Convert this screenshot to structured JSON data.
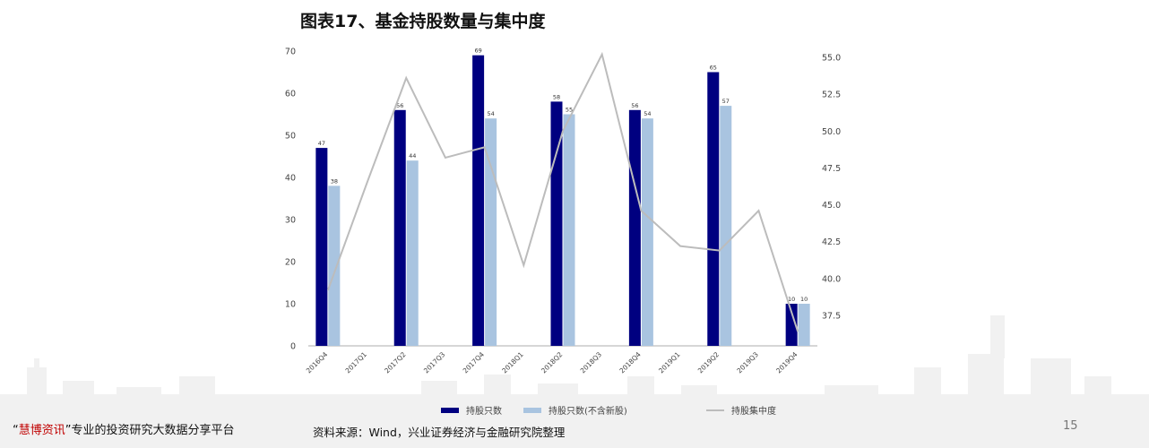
{
  "title": "图表17、基金持股数量与集中度",
  "footer": {
    "quote_open": "“",
    "brand": "慧博资讯",
    "quote_close": "”",
    "slogan": "专业的投资研究大数据分享平台",
    "slogan_tail": "台"
  },
  "source": "资料来源：Wind，兴业证券经济与金融研究院整理",
  "page_number": "15",
  "colors": {
    "dark_bar": "#000080",
    "light_bar": "#a9c4e0",
    "line": "#bcbcbc"
  },
  "chart_data": {
    "type": "bar",
    "categories": [
      "2016Q4",
      "2017Q1",
      "2017Q2",
      "2017Q3",
      "2017Q4",
      "2018Q1",
      "2018Q2",
      "2018Q3",
      "2018Q4",
      "2019Q1",
      "2019Q2",
      "2019Q3",
      "2019Q4"
    ],
    "series": [
      {
        "name": "持股只数",
        "type": "bar",
        "axis": "left",
        "values": [
          47,
          null,
          56,
          null,
          69,
          null,
          58,
          null,
          56,
          null,
          65,
          null,
          10
        ]
      },
      {
        "name": "持股只数(不含新股)",
        "type": "bar",
        "axis": "left",
        "values": [
          38,
          null,
          44,
          null,
          54,
          null,
          55,
          null,
          54,
          null,
          57,
          null,
          10
        ]
      },
      {
        "name": "持股集中度",
        "type": "line",
        "axis": "right",
        "values": [
          39.2,
          46.5,
          53.6,
          48.2,
          48.9,
          40.9,
          50.0,
          55.2,
          44.6,
          42.2,
          41.9,
          44.6,
          36.4
        ]
      }
    ],
    "y_left": {
      "min": 0,
      "max": 70,
      "ticks": [
        "0",
        "10",
        "20",
        "30",
        "40",
        "50",
        "60",
        "70"
      ]
    },
    "y_right": {
      "min": 35.0,
      "max": 55.5,
      "ticks": [
        "37.5",
        "40.0",
        "42.5",
        "45.0",
        "47.5",
        "50.0",
        "52.5",
        "55.0"
      ]
    },
    "legend_position": "bottom",
    "grid": false
  }
}
